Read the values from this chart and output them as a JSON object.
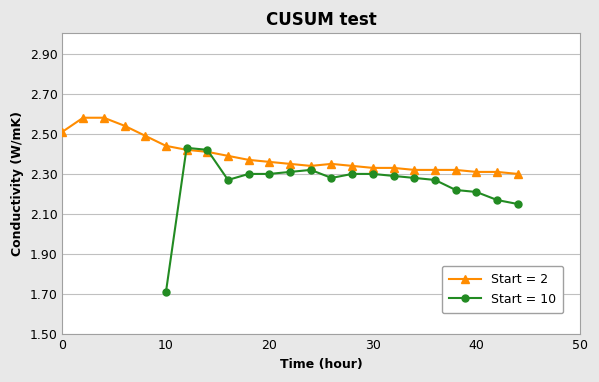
{
  "title": "CUSUM test",
  "xlabel": "Time (hour)",
  "ylabel": "Conductivity (W/mK)",
  "xlim": [
    0,
    50
  ],
  "ylim": [
    1.5,
    3.0
  ],
  "yticks": [
    1.5,
    1.7,
    1.9,
    2.1,
    2.3,
    2.5,
    2.7,
    2.9
  ],
  "xticks": [
    0,
    10,
    20,
    30,
    40,
    50
  ],
  "start2_x": [
    0,
    2,
    4,
    6,
    8,
    10,
    12,
    14,
    16,
    18,
    20,
    22,
    24,
    26,
    28,
    30,
    32,
    34,
    36,
    38,
    40,
    42,
    44
  ],
  "start2_y": [
    2.51,
    2.58,
    2.58,
    2.54,
    2.49,
    2.44,
    2.42,
    2.41,
    2.39,
    2.37,
    2.36,
    2.35,
    2.34,
    2.35,
    2.34,
    2.33,
    2.33,
    2.32,
    2.32,
    2.32,
    2.31,
    2.31,
    2.3
  ],
  "start10_x": [
    10,
    12,
    14,
    16,
    18,
    20,
    22,
    24,
    26,
    28,
    30,
    32,
    34,
    36,
    38,
    40,
    42,
    44
  ],
  "start10_y": [
    1.71,
    2.43,
    2.42,
    2.27,
    2.3,
    2.3,
    2.31,
    2.32,
    2.28,
    2.3,
    2.3,
    2.29,
    2.28,
    2.27,
    2.22,
    2.21,
    2.17,
    2.15
  ],
  "color_start2": "#FF8C00",
  "color_start10": "#228B22",
  "outer_bg": "#E8E8E8",
  "plot_bg": "#FFFFFF",
  "grid_color": "#C0C0C0",
  "spine_color": "#A0A0A0",
  "label_start2": "Start = 2",
  "label_start10": "Start = 10",
  "title_fontsize": 12,
  "axis_label_fontsize": 9,
  "tick_fontsize": 9,
  "legend_fontsize": 9,
  "linewidth": 1.5,
  "marker_size_2": 6,
  "marker_size_10": 5
}
